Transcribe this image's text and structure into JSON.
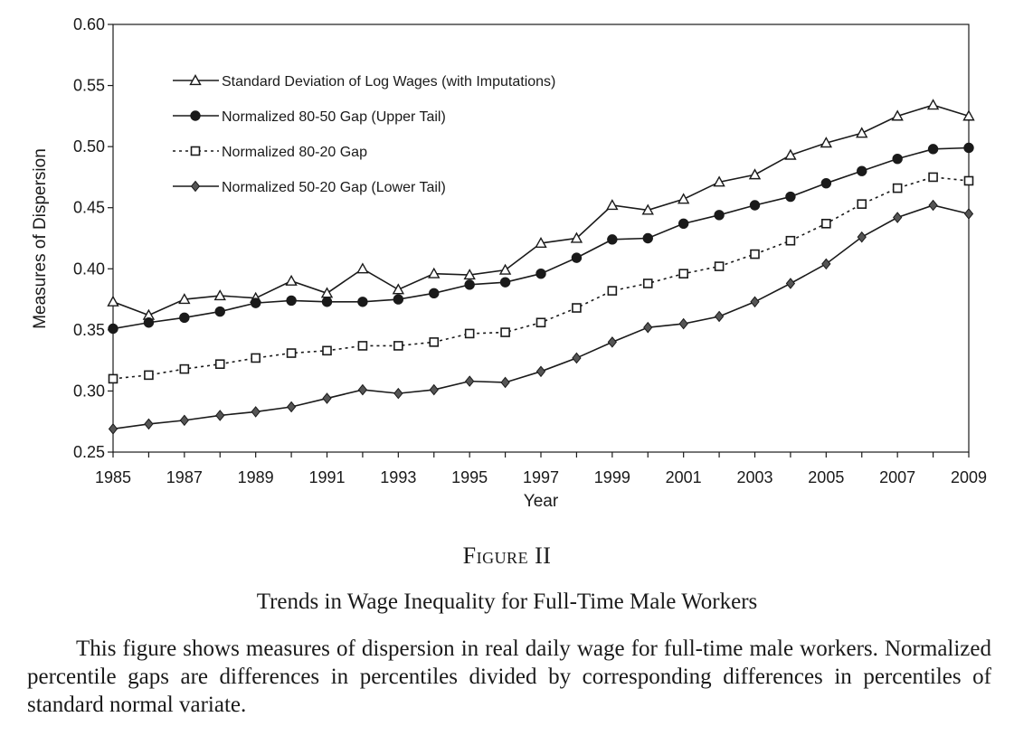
{
  "chart_data": {
    "type": "line",
    "x": [
      1985,
      1986,
      1987,
      1988,
      1989,
      1990,
      1991,
      1992,
      1993,
      1994,
      1995,
      1996,
      1997,
      1998,
      1999,
      2000,
      2001,
      2002,
      2003,
      2004,
      2005,
      2006,
      2007,
      2008,
      2009
    ],
    "xticks": [
      "1985",
      "1987",
      "1989",
      "1991",
      "1993",
      "1995",
      "1997",
      "1999",
      "2001",
      "2003",
      "2005",
      "2007",
      "2009"
    ],
    "yticks": [
      "0.25",
      "0.30",
      "0.35",
      "0.40",
      "0.45",
      "0.50",
      "0.55",
      "0.60"
    ],
    "xlabel": "Year",
    "ylabel": "Measures of Dispersion",
    "xlim": [
      1985,
      2009
    ],
    "ylim": [
      0.25,
      0.6
    ],
    "grid": false,
    "legend_position": "top-left",
    "series": [
      {
        "name": "Standard Deviation of Log Wages (with Imputations)",
        "marker": "triangle",
        "line": "solid",
        "values": [
          0.373,
          0.362,
          0.375,
          0.378,
          0.376,
          0.39,
          0.38,
          0.4,
          0.383,
          0.396,
          0.395,
          0.399,
          0.421,
          0.425,
          0.452,
          0.448,
          0.457,
          0.471,
          0.477,
          0.493,
          0.503,
          0.511,
          0.525,
          0.534,
          0.525
        ]
      },
      {
        "name": "Normalized 80-50 Gap (Upper Tail)",
        "marker": "circle",
        "line": "solid",
        "values": [
          0.351,
          0.356,
          0.36,
          0.365,
          0.372,
          0.374,
          0.373,
          0.373,
          0.375,
          0.38,
          0.387,
          0.389,
          0.396,
          0.409,
          0.424,
          0.425,
          0.437,
          0.444,
          0.452,
          0.459,
          0.47,
          0.48,
          0.49,
          0.498,
          0.499
        ]
      },
      {
        "name": "Normalized 80-20 Gap",
        "marker": "square",
        "line": "dotted",
        "values": [
          0.31,
          0.313,
          0.318,
          0.322,
          0.327,
          0.331,
          0.333,
          0.337,
          0.337,
          0.34,
          0.347,
          0.348,
          0.356,
          0.368,
          0.382,
          0.388,
          0.396,
          0.402,
          0.412,
          0.423,
          0.437,
          0.453,
          0.466,
          0.475,
          0.472
        ]
      },
      {
        "name": "Normalized 50-20 Gap (Lower Tail)",
        "marker": "diamond",
        "line": "solid",
        "values": [
          0.269,
          0.273,
          0.276,
          0.28,
          0.283,
          0.287,
          0.294,
          0.301,
          0.298,
          0.301,
          0.308,
          0.307,
          0.316,
          0.327,
          0.34,
          0.352,
          0.355,
          0.361,
          0.373,
          0.388,
          0.404,
          0.426,
          0.442,
          0.452,
          0.445
        ]
      }
    ]
  },
  "figure": {
    "label": "Figure II",
    "title": "Trends in Wage Inequality for Full-Time Male Workers",
    "note": "This figure shows measures of dispersion in real daily wage for full-time male workers. Normalized percentile gaps are differences in percentiles divided by corresponding differences in percentiles of standard normal variate."
  },
  "colors": {
    "ink": "#1a1a1a",
    "background": "#ffffff"
  }
}
